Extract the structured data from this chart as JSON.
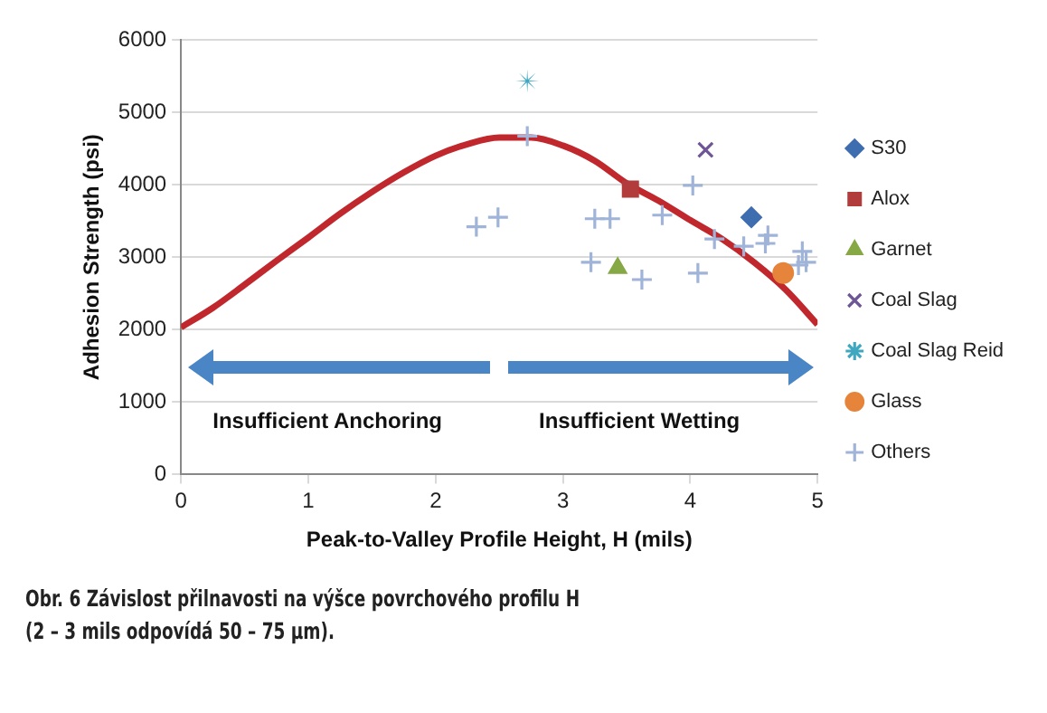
{
  "chart_data": {
    "type": "scatter",
    "xlabel": "Peak-to-Valley Profile Height, H (mils)",
    "ylabel": "Adhesion Strength (psi)",
    "xlim": [
      0,
      5
    ],
    "xticks": [
      0,
      1,
      2,
      3,
      4,
      5
    ],
    "ylim": [
      0,
      6000
    ],
    "yticks": [
      0,
      1000,
      2000,
      3000,
      4000,
      5000,
      6000
    ],
    "grid": "y",
    "legend": "right",
    "annotations": [
      "Insufficient Anchoring",
      "Insufficient Wetting",
      "Obr. 6 Závislost přilnavosti na výšce povrchového profilu H",
      "(2 – 3 mils odpovídá 50 – 75 µm)."
    ],
    "series": [
      {
        "type": "line",
        "color": "#c0282d",
        "marker": "none",
        "line_style": "solid",
        "x": [
          0,
          0.25,
          0.5,
          0.75,
          1,
          1.25,
          1.5,
          1.75,
          2,
          2.25,
          2.5,
          2.75,
          3,
          3.25,
          3.5,
          3.75,
          4,
          4.25,
          4.5,
          4.75,
          5
        ],
        "values": [
          2030,
          2300,
          2620,
          2950,
          3270,
          3600,
          3900,
          4170,
          4400,
          4560,
          4650,
          4650,
          4540,
          4330,
          4020,
          3780,
          3510,
          3250,
          2930,
          2550,
          2070
        ]
      },
      {
        "name": "S30",
        "color": "#3e6db0",
        "marker": "diamond",
        "x": [
          4.48
        ],
        "values": [
          3550
        ]
      },
      {
        "name": "Alox",
        "color": "#b23c3c",
        "marker": "square",
        "x": [
          3.53
        ],
        "values": [
          3940
        ]
      },
      {
        "name": "Garnet",
        "color": "#86a845",
        "marker": "triangle",
        "x": [
          3.43
        ],
        "values": [
          2850
        ]
      },
      {
        "name": "Coal Slag",
        "color": "#6e5596",
        "marker": "x",
        "x": [
          4.12
        ],
        "values": [
          4480
        ]
      },
      {
        "name": "Coal Slag Reid",
        "color": "#3fa8c0",
        "marker": "star",
        "x": [
          2.72
        ],
        "values": [
          5430
        ]
      },
      {
        "name": "Glass",
        "color": "#e5843a",
        "marker": "circle",
        "x": [
          4.73
        ],
        "values": [
          2780
        ]
      },
      {
        "name": "Others",
        "color": "#9fb4d8",
        "marker": "cross",
        "x": [
          2.72,
          2.32,
          2.49,
          3.25,
          3.37,
          3.22,
          3.62,
          3.78,
          4.02,
          4.06,
          4.19,
          4.42,
          4.59,
          4.61,
          4.88,
          4.91,
          4.85
        ],
        "values": [
          4670,
          3420,
          3550,
          3530,
          3530,
          2930,
          2690,
          3580,
          3990,
          2780,
          3250,
          3150,
          3190,
          3300,
          3080,
          2930,
          2890
        ]
      }
    ]
  }
}
